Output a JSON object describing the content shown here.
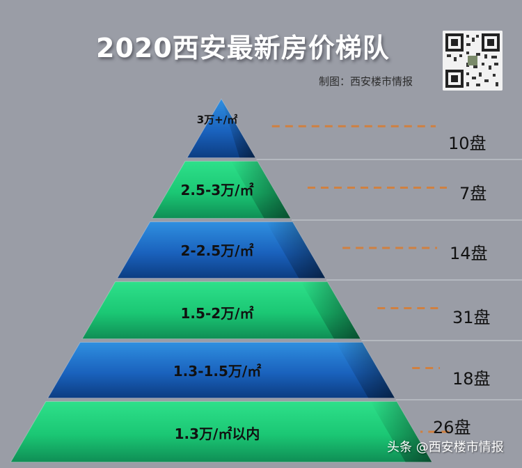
{
  "title": "2020西安最新房价梯队",
  "credit": "制图：西安楼市情报",
  "qr_icon": "qr-code-icon",
  "watermark": "头条 @西安楼市情报",
  "colors": {
    "background": "#9a9da6",
    "blue_tier": "#1b5fb8",
    "green_tier": "#1fd17a",
    "dash": "#d08040"
  },
  "tiers": [
    {
      "label": "3万+/㎡",
      "count": "10盘",
      "color": "blue"
    },
    {
      "label": "2.5-3万/㎡",
      "count": "7盘",
      "color": "green"
    },
    {
      "label": "2-2.5万/㎡",
      "count": "14盘",
      "color": "blue"
    },
    {
      "label": "1.5-2万/㎡",
      "count": "31盘",
      "color": "green"
    },
    {
      "label": "1.3-1.5万/㎡",
      "count": "18盘",
      "color": "blue"
    },
    {
      "label": "1.3万/㎡以内",
      "count": "26盘",
      "color": "green"
    }
  ]
}
